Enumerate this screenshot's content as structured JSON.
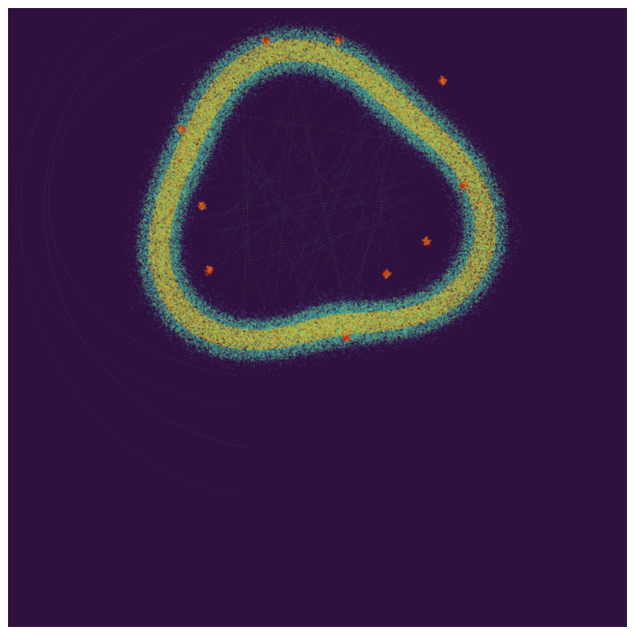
{
  "image": {
    "subject": "strange-attractor",
    "background_color": "#30103c",
    "frame_color": "#ffffff",
    "palette": [
      "#3b2c7a",
      "#4a5aa8",
      "#3f8fb0",
      "#3dbfa0",
      "#7ed07a",
      "#c9d24a",
      "#e0a030",
      "#d8401a",
      "#b01008"
    ]
  }
}
